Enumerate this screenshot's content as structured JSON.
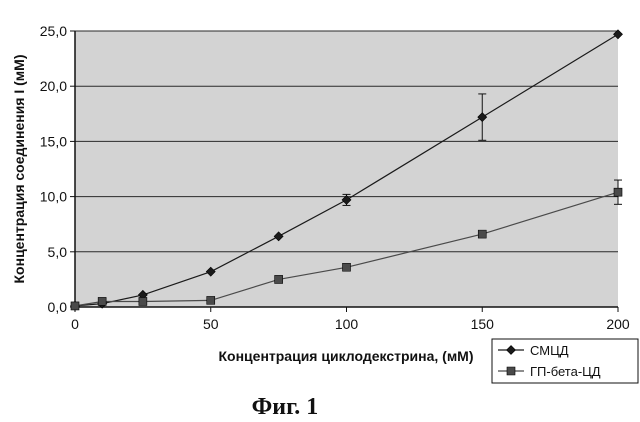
{
  "chart_data": {
    "type": "line",
    "xlabel": "Концентрация циклодекстрина, (мМ)",
    "ylabel": "Концентрация соединения I (мМ)",
    "xlim": [
      0,
      200
    ],
    "ylim": [
      0,
      25
    ],
    "x_ticks": [
      "0",
      "50",
      "100",
      "150",
      "200"
    ],
    "y_ticks": [
      "0,0",
      "5,0",
      "10,0",
      "15,0",
      "20,0",
      "25,0"
    ],
    "grid": "horizontal",
    "legend_position": "bottom-right",
    "series": [
      {
        "name": "СМЦД",
        "marker": "diamond",
        "color": "#1a1a1a",
        "points": [
          {
            "x": 0,
            "y": 0.1
          },
          {
            "x": 10,
            "y": 0.3
          },
          {
            "x": 25,
            "y": 1.1
          },
          {
            "x": 50,
            "y": 3.2
          },
          {
            "x": 75,
            "y": 6.4
          },
          {
            "x": 100,
            "y": 9.7,
            "err": 0.5
          },
          {
            "x": 150,
            "y": 17.2,
            "err": 2.1
          },
          {
            "x": 200,
            "y": 24.7
          }
        ]
      },
      {
        "name": "ГП-бета-ЦД",
        "marker": "square",
        "color": "#4a4a4a",
        "points": [
          {
            "x": 0,
            "y": 0.1
          },
          {
            "x": 10,
            "y": 0.5
          },
          {
            "x": 25,
            "y": 0.5
          },
          {
            "x": 50,
            "y": 0.6
          },
          {
            "x": 75,
            "y": 2.5
          },
          {
            "x": 100,
            "y": 3.6
          },
          {
            "x": 150,
            "y": 6.6
          },
          {
            "x": 200,
            "y": 10.4,
            "err": 1.1
          }
        ]
      }
    ]
  },
  "figure": {
    "caption": "Фиг. 1",
    "plot_background": "#d3d3d3",
    "grid_color": "#2a2a2a"
  }
}
